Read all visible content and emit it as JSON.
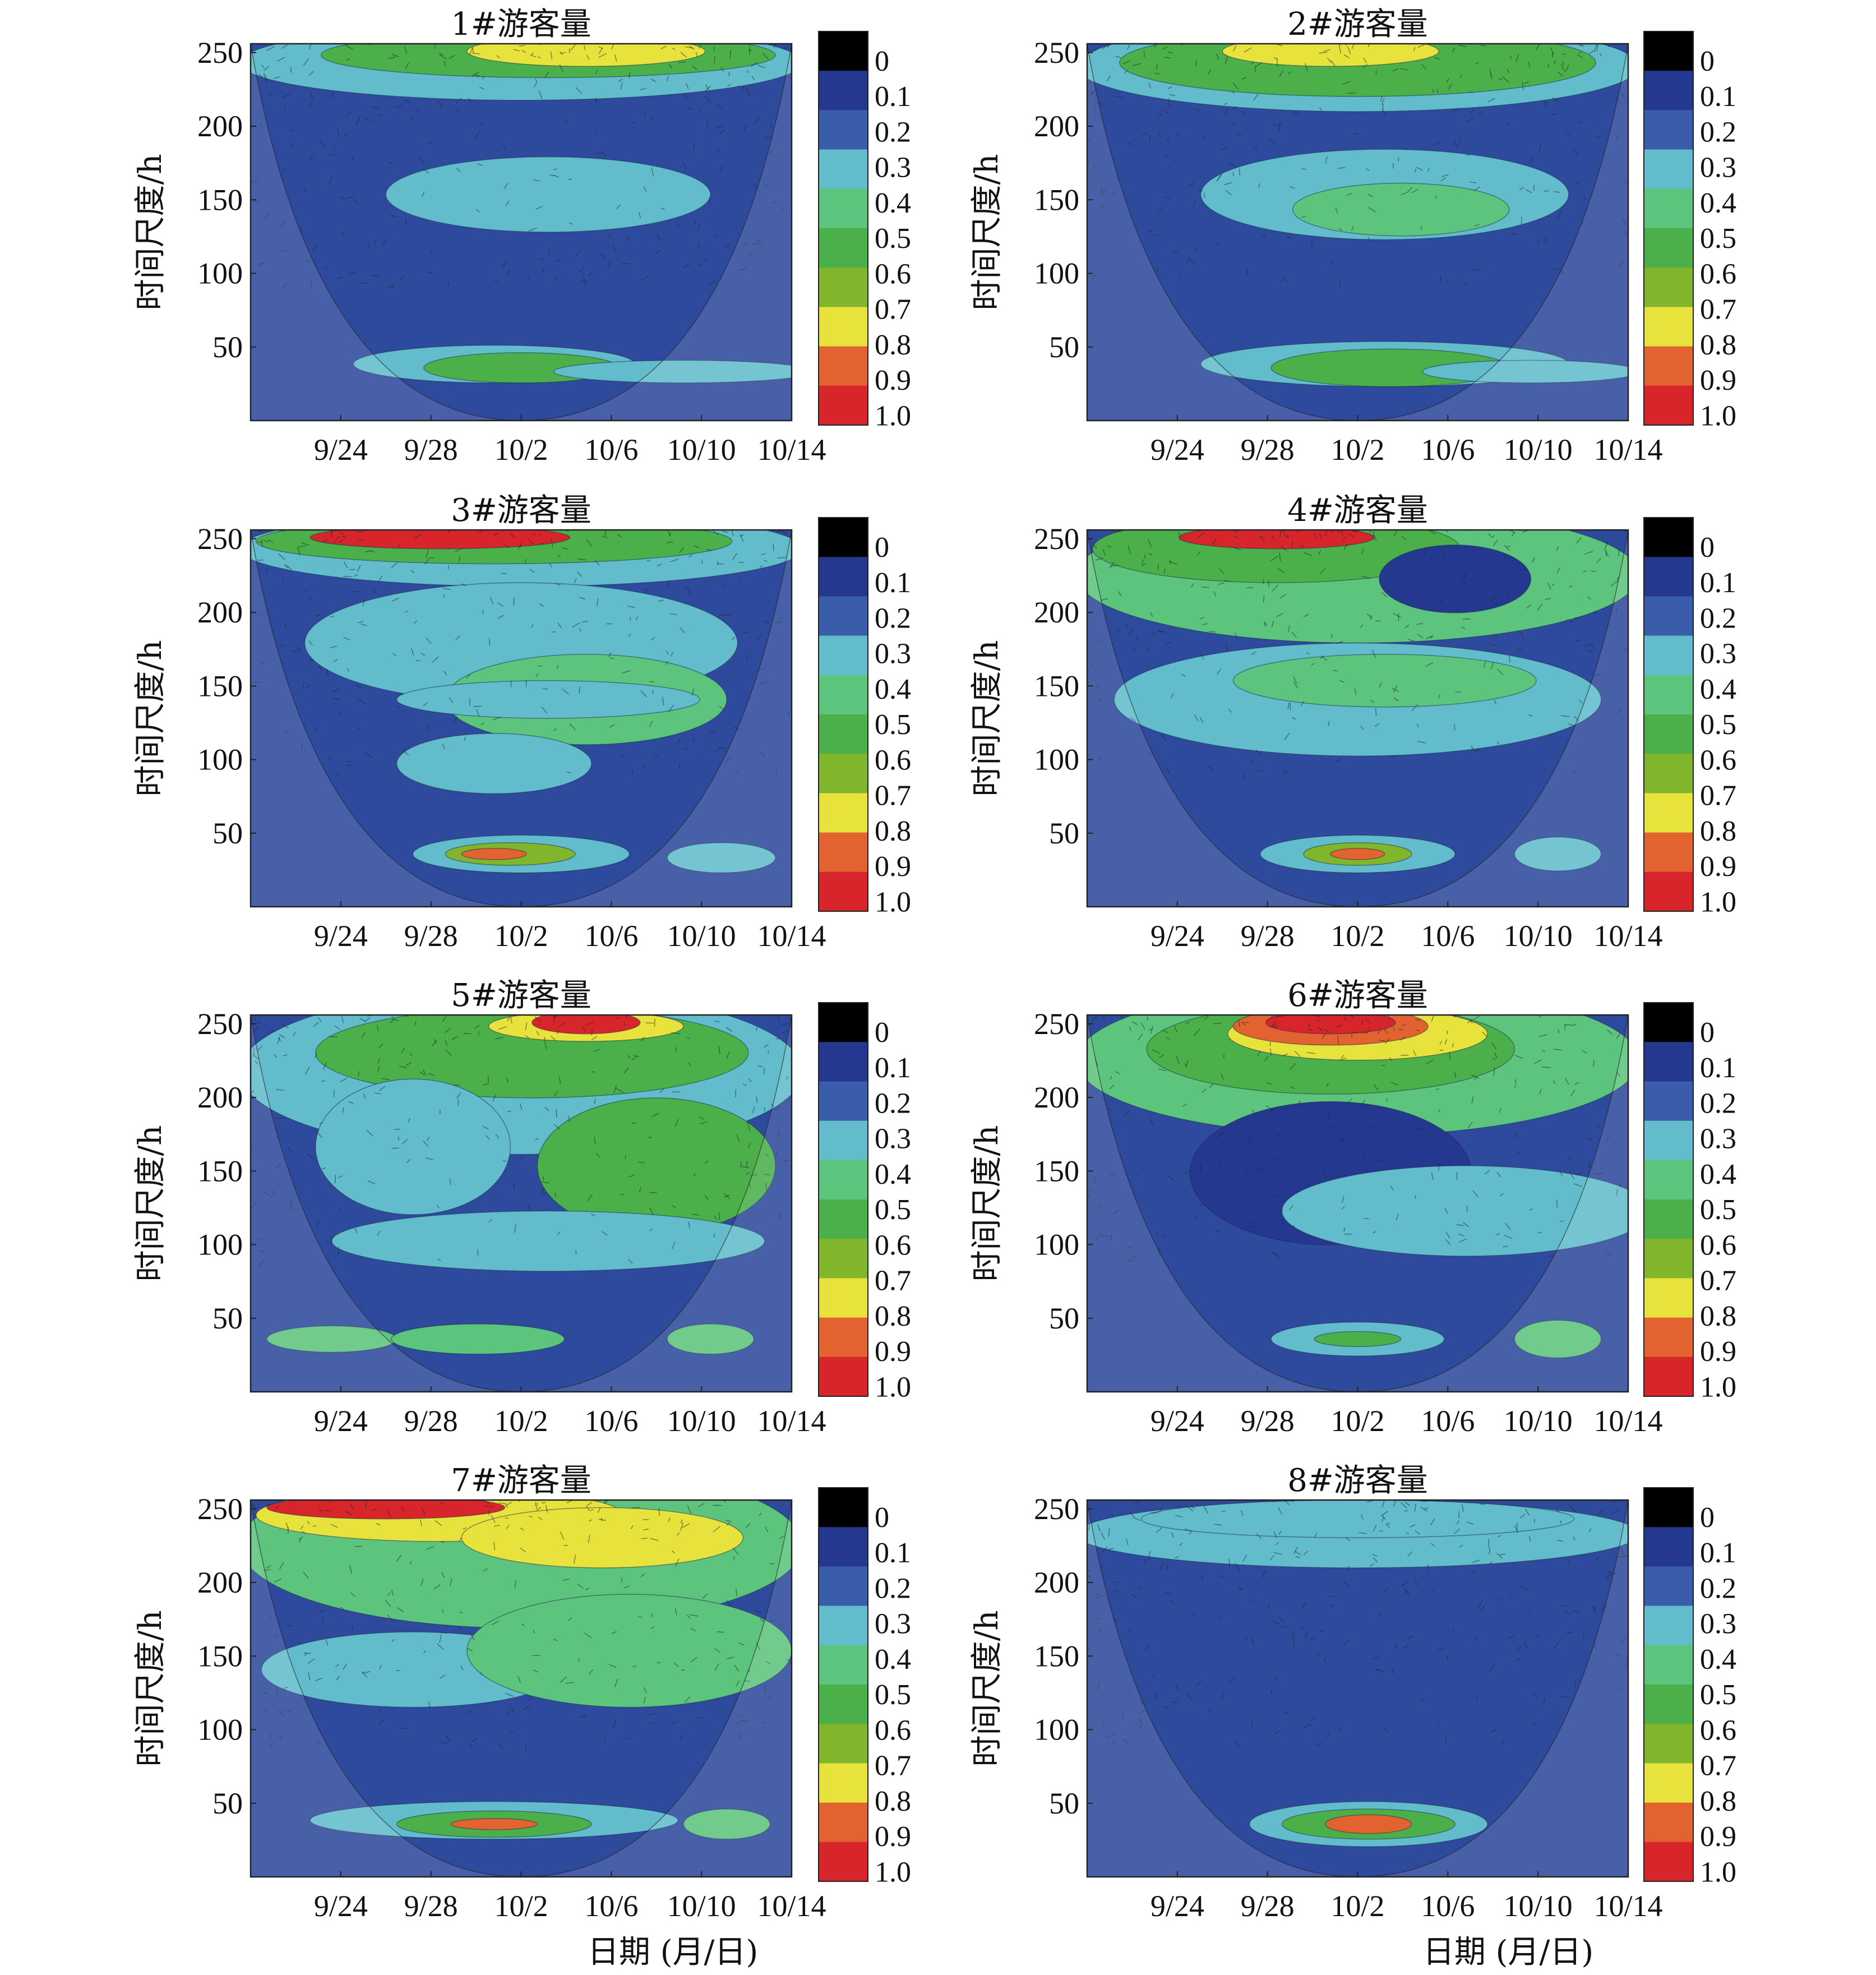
{
  "figure": {
    "xlabel": "日期 (月/日)",
    "ylabel": "时间尺度/h"
  },
  "chart_data": [
    {
      "type": "heatmap",
      "title": "1#游客量",
      "xlabel": "日期 (月/日)",
      "ylabel": "时间尺度/h",
      "x_ticks": [
        "9/24",
        "9/28",
        "10/2",
        "10/6",
        "10/10",
        "10/14"
      ],
      "y_ticks": [
        250,
        200,
        150,
        100,
        50
      ],
      "ylim": [
        0,
        256
      ],
      "colorbar": {
        "levels": [
          "0",
          "0.1",
          "0.2",
          "0.3",
          "0.4",
          "0.5",
          "0.6",
          "0.7",
          "0.8",
          "0.9",
          "1.0"
        ]
      }
    },
    {
      "type": "heatmap",
      "title": "2#游客量",
      "xlabel": "日期 (月/日)",
      "ylabel": "时间尺度/h",
      "x_ticks": [
        "9/24",
        "9/28",
        "10/2",
        "10/6",
        "10/10",
        "10/14"
      ],
      "y_ticks": [
        250,
        200,
        150,
        100,
        50
      ],
      "ylim": [
        0,
        256
      ],
      "colorbar": {
        "levels": [
          "0",
          "0.1",
          "0.2",
          "0.3",
          "0.4",
          "0.5",
          "0.6",
          "0.7",
          "0.8",
          "0.9",
          "1.0"
        ]
      }
    },
    {
      "type": "heatmap",
      "title": "3#游客量",
      "xlabel": "日期 (月/日)",
      "ylabel": "时间尺度/h",
      "x_ticks": [
        "9/24",
        "9/28",
        "10/2",
        "10/6",
        "10/10",
        "10/14"
      ],
      "y_ticks": [
        250,
        200,
        150,
        100,
        50
      ],
      "ylim": [
        0,
        256
      ],
      "colorbar": {
        "levels": [
          "0",
          "0.1",
          "0.2",
          "0.3",
          "0.4",
          "0.5",
          "0.6",
          "0.7",
          "0.8",
          "0.9",
          "1.0"
        ]
      }
    },
    {
      "type": "heatmap",
      "title": "4#游客量",
      "xlabel": "日期 (月/日)",
      "ylabel": "时间尺度/h",
      "x_ticks": [
        "9/24",
        "9/28",
        "10/2",
        "10/6",
        "10/10",
        "10/14"
      ],
      "y_ticks": [
        250,
        200,
        150,
        100,
        50
      ],
      "ylim": [
        0,
        256
      ],
      "colorbar": {
        "levels": [
          "0",
          "0.1",
          "0.2",
          "0.3",
          "0.4",
          "0.5",
          "0.6",
          "0.7",
          "0.8",
          "0.9",
          "1.0"
        ]
      }
    },
    {
      "type": "heatmap",
      "title": "5#游客量",
      "xlabel": "日期 (月/日)",
      "ylabel": "时间尺度/h",
      "x_ticks": [
        "9/24",
        "9/28",
        "10/2",
        "10/6",
        "10/10",
        "10/14"
      ],
      "y_ticks": [
        250,
        200,
        150,
        100,
        50
      ],
      "ylim": [
        0,
        256
      ],
      "colorbar": {
        "levels": [
          "0",
          "0.1",
          "0.2",
          "0.3",
          "0.4",
          "0.5",
          "0.6",
          "0.7",
          "0.8",
          "0.9",
          "1.0"
        ]
      }
    },
    {
      "type": "heatmap",
      "title": "6#游客量",
      "xlabel": "日期 (月/日)",
      "ylabel": "时间尺度/h",
      "x_ticks": [
        "9/24",
        "9/28",
        "10/2",
        "10/6",
        "10/10",
        "10/14"
      ],
      "y_ticks": [
        250,
        200,
        150,
        100,
        50
      ],
      "ylim": [
        0,
        256
      ],
      "colorbar": {
        "levels": [
          "0",
          "0.1",
          "0.2",
          "0.3",
          "0.4",
          "0.5",
          "0.6",
          "0.7",
          "0.8",
          "0.9",
          "1.0"
        ]
      }
    },
    {
      "type": "heatmap",
      "title": "7#游客量",
      "xlabel": "日期 (月/日)",
      "ylabel": "时间尺度/h",
      "x_ticks": [
        "9/24",
        "9/28",
        "10/2",
        "10/6",
        "10/10",
        "10/14"
      ],
      "y_ticks": [
        250,
        200,
        150,
        100,
        50
      ],
      "ylim": [
        0,
        256
      ],
      "colorbar": {
        "levels": [
          "0",
          "0.1",
          "0.2",
          "0.3",
          "0.4",
          "0.5",
          "0.6",
          "0.7",
          "0.8",
          "0.9",
          "1.0"
        ]
      }
    },
    {
      "type": "heatmap",
      "title": "8#游客量",
      "xlabel": "日期 (月/日)",
      "ylabel": "时间尺度/h",
      "x_ticks": [
        "9/24",
        "9/28",
        "10/2",
        "10/6",
        "10/10",
        "10/14"
      ],
      "y_ticks": [
        250,
        200,
        150,
        100,
        50
      ],
      "ylim": [
        0,
        256
      ],
      "colorbar": {
        "levels": [
          "0",
          "0.1",
          "0.2",
          "0.3",
          "0.4",
          "0.5",
          "0.6",
          "0.7",
          "0.8",
          "0.9",
          "1.0"
        ]
      }
    }
  ],
  "colormap": [
    "#000000",
    "#24388f",
    "#3a5dab",
    "#62bccb",
    "#5dc47e",
    "#4bb04a",
    "#80b52c",
    "#e8e23c",
    "#e26230",
    "#d8252c"
  ],
  "background_color": "#2e4a9c"
}
